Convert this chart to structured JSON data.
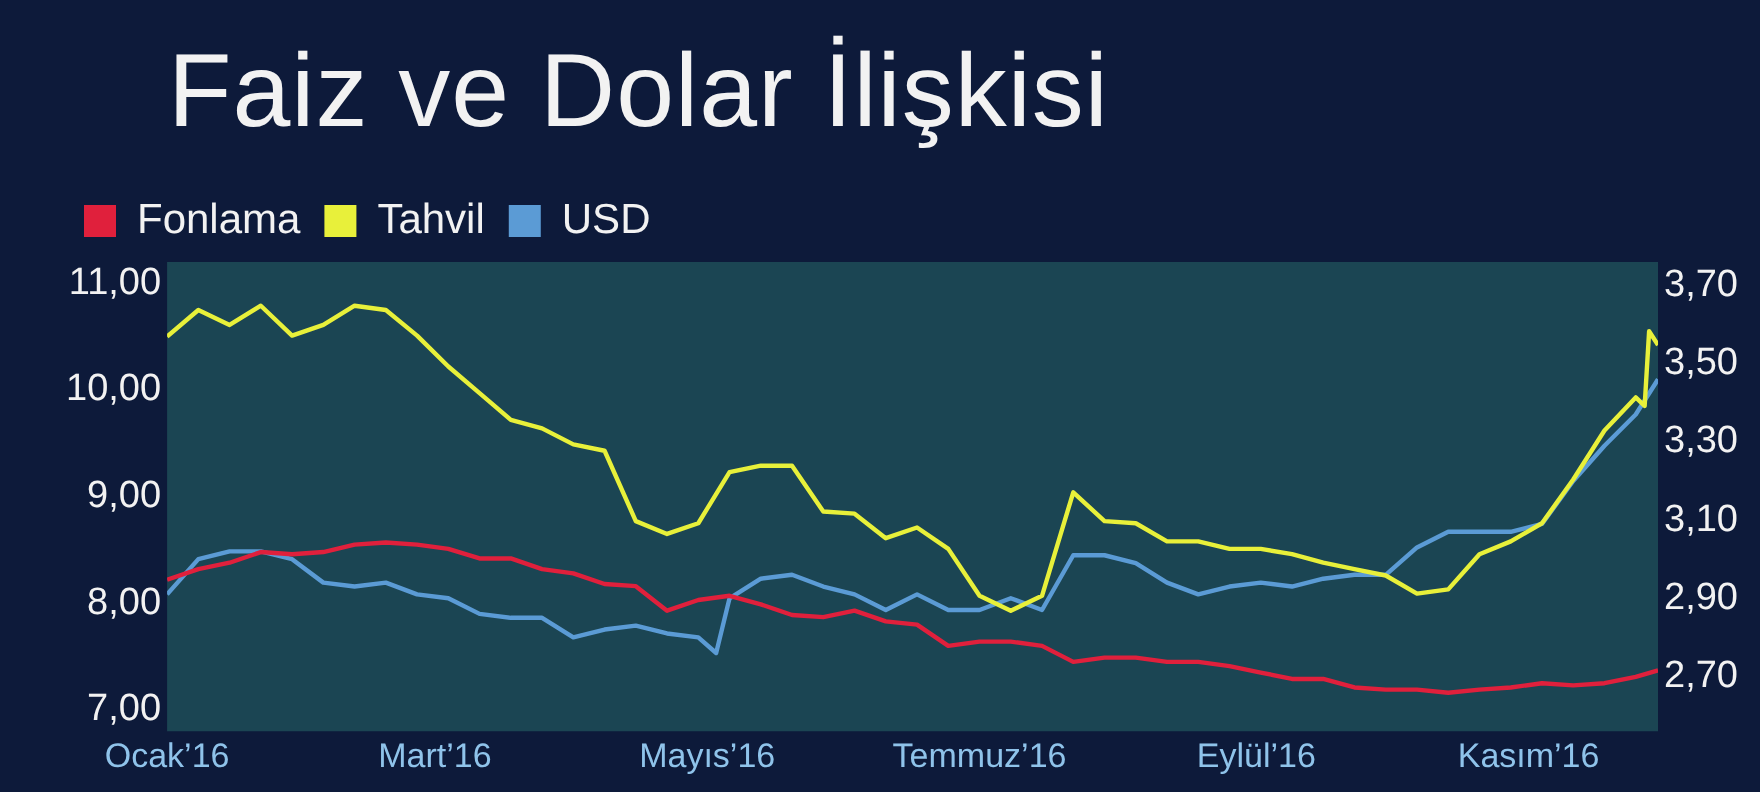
{
  "chart_data": {
    "type": "line",
    "title": "Faiz ve Dolar İlişkisi",
    "legend": "top left",
    "grid": false,
    "marker": "none",
    "line_style": "solid",
    "x": [
      "2016-01-01",
      "2016-01-08",
      "2016-01-15",
      "2016-01-22",
      "2016-01-29",
      "2016-02-05",
      "2016-02-12",
      "2016-02-19",
      "2016-02-26",
      "2016-03-04",
      "2016-03-11",
      "2016-03-18",
      "2016-03-25",
      "2016-04-01",
      "2016-04-08",
      "2016-04-15",
      "2016-04-22",
      "2016-04-29",
      "2016-05-06",
      "2016-05-13",
      "2016-05-20",
      "2016-05-27",
      "2016-06-03",
      "2016-06-10",
      "2016-06-17",
      "2016-06-24",
      "2016-07-01",
      "2016-07-08",
      "2016-07-15",
      "2016-07-22",
      "2016-07-29",
      "2016-08-05",
      "2016-08-12",
      "2016-08-19",
      "2016-08-26",
      "2016-09-02",
      "2016-09-09",
      "2016-09-16",
      "2016-09-23",
      "2016-09-30",
      "2016-10-07",
      "2016-10-14",
      "2016-10-21",
      "2016-10-28",
      "2016-11-04",
      "2016-11-11",
      "2016-11-18",
      "2016-11-25",
      "2016-11-30"
    ],
    "xlim": [
      "2016-01-01",
      "2016-11-30"
    ],
    "xticks": [
      {
        "value": "2016-01-01",
        "label": "Ocak’16"
      },
      {
        "value": "2016-03-01",
        "label": "Mart’16"
      },
      {
        "value": "2016-05-01",
        "label": "Mayıs’16"
      },
      {
        "value": "2016-07-01",
        "label": "Temmuz’16"
      },
      {
        "value": "2016-09-01",
        "label": "Eylül’16"
      },
      {
        "value": "2016-11-01",
        "label": "Kasım’16"
      }
    ],
    "ylim": [
      6.8,
      11.2
    ],
    "yticks": [
      {
        "value": 7,
        "label": "7,00"
      },
      {
        "value": 8,
        "label": "8,00"
      },
      {
        "value": 9,
        "label": "9,00"
      },
      {
        "value": 10,
        "label": "10,00"
      },
      {
        "value": 11,
        "label": "11,00"
      }
    ],
    "y2lim": [
      2.56,
      3.76
    ],
    "y2ticks": [
      {
        "value": 2.7,
        "label": "2,70"
      },
      {
        "value": 2.9,
        "label": "2,90"
      },
      {
        "value": 3.1,
        "label": "3,10"
      },
      {
        "value": 3.3,
        "label": "3,30"
      },
      {
        "value": 3.5,
        "label": "3,50"
      },
      {
        "value": 3.7,
        "label": "3,70"
      }
    ],
    "series": [
      {
        "name": "Fonlama",
        "color": "#e0203c",
        "values": [
          8.22,
          8.32,
          8.38,
          8.48,
          8.46,
          8.48,
          8.55,
          8.57,
          8.55,
          8.51,
          8.42,
          8.42,
          8.32,
          8.28,
          8.18,
          8.16,
          7.93,
          8.03,
          8.07,
          7.99,
          7.89,
          7.87,
          7.93,
          7.83,
          7.8,
          7.6,
          7.64,
          7.64,
          7.6,
          7.45,
          7.49,
          7.49,
          7.45,
          7.45,
          7.41,
          7.35,
          7.29,
          7.29,
          7.21,
          7.19,
          7.19,
          7.16,
          7.19,
          7.21,
          7.25,
          7.23,
          7.25,
          7.31,
          7.37
        ]
      },
      {
        "name": "Tahvil",
        "color": "#e8f03a",
        "x": [
          "2016-01-01",
          "2016-01-08",
          "2016-01-15",
          "2016-01-22",
          "2016-01-29",
          "2016-02-05",
          "2016-02-12",
          "2016-02-19",
          "2016-02-26",
          "2016-03-04",
          "2016-03-11",
          "2016-03-18",
          "2016-03-25",
          "2016-04-01",
          "2016-04-08",
          "2016-04-15",
          "2016-04-22",
          "2016-04-29",
          "2016-05-06",
          "2016-05-13",
          "2016-05-20",
          "2016-05-27",
          "2016-06-03",
          "2016-06-10",
          "2016-06-17",
          "2016-06-24",
          "2016-07-01",
          "2016-07-08",
          "2016-07-15",
          "2016-07-22",
          "2016-07-29",
          "2016-08-05",
          "2016-08-12",
          "2016-08-19",
          "2016-08-26",
          "2016-09-02",
          "2016-09-09",
          "2016-09-16",
          "2016-09-23",
          "2016-09-30",
          "2016-10-07",
          "2016-10-14",
          "2016-10-21",
          "2016-10-28",
          "2016-11-04",
          "2016-11-11",
          "2016-11-18",
          "2016-11-25",
          "2016-11-27",
          "2016-11-28",
          "2016-11-30"
        ],
        "values": [
          10.5,
          10.75,
          10.61,
          10.79,
          10.51,
          10.61,
          10.79,
          10.75,
          10.51,
          10.22,
          9.97,
          9.72,
          9.64,
          9.49,
          9.43,
          8.77,
          8.65,
          8.75,
          9.23,
          9.29,
          9.29,
          8.86,
          8.84,
          8.61,
          8.71,
          8.51,
          8.07,
          7.93,
          8.07,
          9.04,
          8.77,
          8.75,
          8.58,
          8.58,
          8.51,
          8.51,
          8.46,
          8.38,
          8.32,
          8.26,
          8.09,
          8.13,
          8.46,
          8.58,
          8.75,
          9.16,
          9.62,
          9.93,
          9.85,
          10.55,
          10.42
        ]
      },
      {
        "name": "USD",
        "color": "#5b9bd5",
        "axis": "y2",
        "x": [
          "2016-01-01",
          "2016-01-08",
          "2016-01-15",
          "2016-01-22",
          "2016-01-29",
          "2016-02-05",
          "2016-02-12",
          "2016-02-19",
          "2016-02-26",
          "2016-03-04",
          "2016-03-11",
          "2016-03-18",
          "2016-03-25",
          "2016-04-01",
          "2016-04-08",
          "2016-04-15",
          "2016-04-22",
          "2016-04-29",
          "2016-05-03",
          "2016-05-06",
          "2016-05-13",
          "2016-05-20",
          "2016-05-27",
          "2016-06-03",
          "2016-06-10",
          "2016-06-17",
          "2016-06-24",
          "2016-07-01",
          "2016-07-08",
          "2016-07-15",
          "2016-07-22",
          "2016-07-29",
          "2016-08-05",
          "2016-08-12",
          "2016-08-19",
          "2016-08-26",
          "2016-09-02",
          "2016-09-09",
          "2016-09-16",
          "2016-09-23",
          "2016-09-30",
          "2016-10-07",
          "2016-10-14",
          "2016-10-21",
          "2016-10-28",
          "2016-11-04",
          "2016-11-11",
          "2016-11-18",
          "2016-11-25",
          "2016-11-30"
        ],
        "values": [
          2.91,
          3.0,
          3.02,
          3.02,
          3.0,
          2.94,
          2.93,
          2.94,
          2.91,
          2.9,
          2.86,
          2.85,
          2.85,
          2.8,
          2.82,
          2.83,
          2.81,
          2.8,
          2.76,
          2.9,
          2.95,
          2.96,
          2.93,
          2.91,
          2.87,
          2.91,
          2.87,
          2.87,
          2.9,
          2.87,
          3.01,
          3.01,
          2.99,
          2.94,
          2.91,
          2.93,
          2.94,
          2.93,
          2.95,
          2.96,
          2.96,
          3.03,
          3.07,
          3.07,
          3.07,
          3.09,
          3.2,
          3.29,
          3.37,
          3.46
        ]
      }
    ]
  }
}
